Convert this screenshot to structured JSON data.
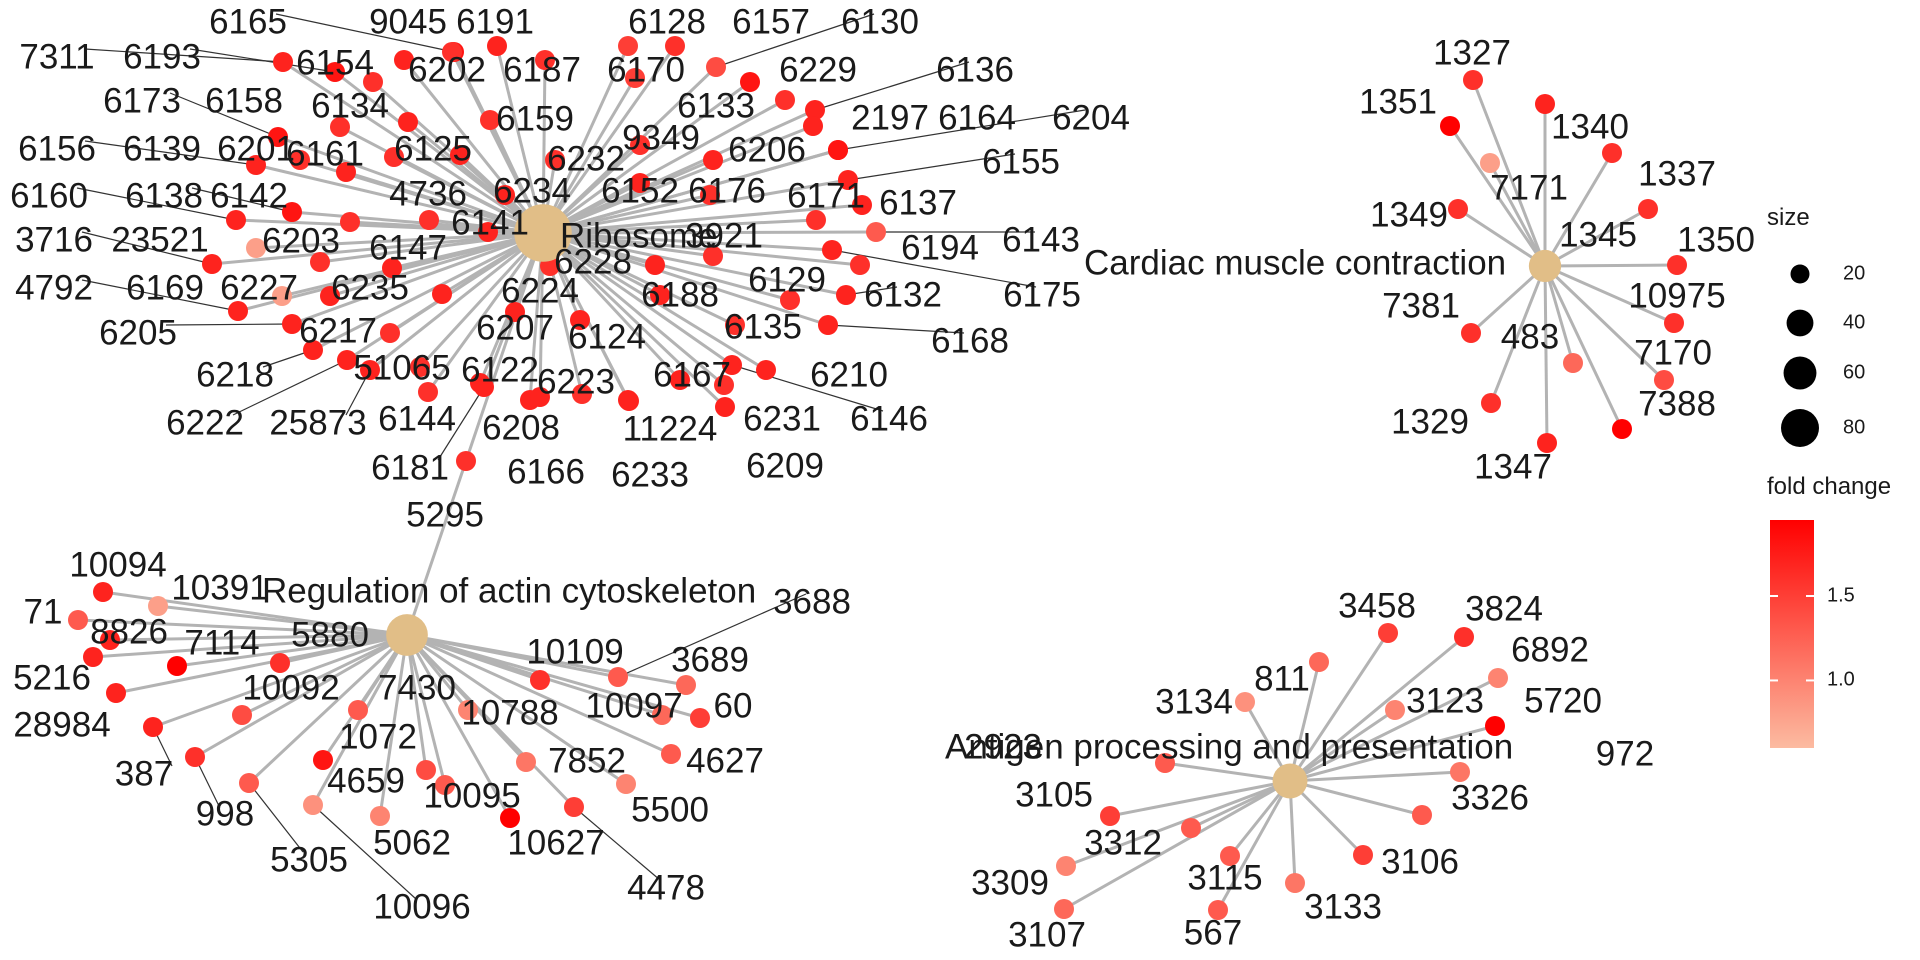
{
  "colors": {
    "category_node": "#E1BE87",
    "edge": "#b3b3b3",
    "leader": "#333333",
    "gradient_low": "#FCBBA1",
    "gradient_high": "#FF0000"
  },
  "legend": {
    "size_title": "size",
    "size_values": [
      "20",
      "40",
      "60",
      "80"
    ],
    "color_title": "fold change",
    "color_ticks": [
      "1.5",
      "1.0"
    ],
    "color_scale": [
      0.6,
      1.95
    ]
  },
  "categories": [
    {
      "name": "Ribosome",
      "size": 95
    },
    {
      "name": "Cardiac muscle contraction",
      "size": 30
    },
    {
      "name": "Regulation of actin cytoskeleton",
      "size": 50
    },
    {
      "name": "Antigen processing and presentation",
      "size": 35
    }
  ],
  "genes": [
    {
      "id": "6165",
      "fc": 1.8
    },
    {
      "id": "9045",
      "fc": 1.6
    },
    {
      "id": "6191",
      "fc": 1.7
    },
    {
      "id": "6128",
      "fc": 1.5
    },
    {
      "id": "6157",
      "fc": 1.6
    },
    {
      "id": "6130",
      "fc": 1.4
    },
    {
      "id": "7311",
      "fc": 1.7
    },
    {
      "id": "6193",
      "fc": 1.8
    },
    {
      "id": "6154",
      "fc": 1.6
    },
    {
      "id": "6202",
      "fc": 1.7
    },
    {
      "id": "6187",
      "fc": 1.6
    },
    {
      "id": "6170",
      "fc": 1.5
    },
    {
      "id": "6229",
      "fc": 1.6
    },
    {
      "id": "6136",
      "fc": 1.7
    },
    {
      "id": "6173",
      "fc": 1.8
    },
    {
      "id": "6158",
      "fc": 1.6
    },
    {
      "id": "6134",
      "fc": 1.7
    },
    {
      "id": "6133",
      "fc": 1.8
    },
    {
      "id": "6159",
      "fc": 1.6
    },
    {
      "id": "2197",
      "fc": 1.7
    },
    {
      "id": "6164",
      "fc": 1.7
    },
    {
      "id": "6204",
      "fc": 1.8
    },
    {
      "id": "6156",
      "fc": 1.7
    },
    {
      "id": "6139",
      "fc": 1.6
    },
    {
      "id": "6201",
      "fc": 1.7
    },
    {
      "id": "6161",
      "fc": 1.6
    },
    {
      "id": "6125",
      "fc": 1.7
    },
    {
      "id": "9349",
      "fc": 1.6
    },
    {
      "id": "6206",
      "fc": 1.7
    },
    {
      "id": "6155",
      "fc": 1.7
    },
    {
      "id": "6232",
      "fc": 1.6
    },
    {
      "id": "6160",
      "fc": 1.7
    },
    {
      "id": "6138",
      "fc": 1.8
    },
    {
      "id": "6142",
      "fc": 1.6
    },
    {
      "id": "4736",
      "fc": 1.6
    },
    {
      "id": "6234",
      "fc": 1.7
    },
    {
      "id": "6152",
      "fc": 1.7
    },
    {
      "id": "6176",
      "fc": 1.6
    },
    {
      "id": "6171",
      "fc": 1.6
    },
    {
      "id": "6137",
      "fc": 1.7
    },
    {
      "id": "6141",
      "fc": 1.7
    },
    {
      "id": "3716",
      "fc": 1.7
    },
    {
      "id": "23521",
      "fc": 0.8
    },
    {
      "id": "6203",
      "fc": 1.6
    },
    {
      "id": "6147",
      "fc": 1.7
    },
    {
      "id": "3921",
      "fc": 1.6
    },
    {
      "id": "6194",
      "fc": 1.6
    },
    {
      "id": "6143",
      "fc": 1.3
    },
    {
      "id": "6228",
      "fc": 1.7
    },
    {
      "id": "4792",
      "fc": 1.7
    },
    {
      "id": "6169",
      "fc": 0.8
    },
    {
      "id": "6227",
      "fc": 1.7
    },
    {
      "id": "6235",
      "fc": 1.7
    },
    {
      "id": "6224",
      "fc": 1.6
    },
    {
      "id": "6188",
      "fc": 1.7
    },
    {
      "id": "6129",
      "fc": 1.6
    },
    {
      "id": "6132",
      "fc": 1.7
    },
    {
      "id": "6175",
      "fc": 1.7
    },
    {
      "id": "6205",
      "fc": 1.7
    },
    {
      "id": "6217",
      "fc": 1.6
    },
    {
      "id": "6207",
      "fc": 1.7
    },
    {
      "id": "6124",
      "fc": 1.7
    },
    {
      "id": "6135",
      "fc": 1.6
    },
    {
      "id": "6168",
      "fc": 1.7
    },
    {
      "id": "6218",
      "fc": 1.7
    },
    {
      "id": "51065",
      "fc": 1.6
    },
    {
      "id": "6122",
      "fc": 1.7
    },
    {
      "id": "6223",
      "fc": 1.6
    },
    {
      "id": "6167",
      "fc": 1.7
    },
    {
      "id": "6210",
      "fc": 1.7
    },
    {
      "id": "6222",
      "fc": 1.7
    },
    {
      "id": "25873",
      "fc": 1.7
    },
    {
      "id": "6144",
      "fc": 1.6
    },
    {
      "id": "6208",
      "fc": 1.7
    },
    {
      "id": "11224",
      "fc": 1.7
    },
    {
      "id": "6231",
      "fc": 1.6
    },
    {
      "id": "6146",
      "fc": 1.7
    },
    {
      "id": "6181",
      "fc": 1.7
    },
    {
      "id": "6166",
      "fc": 1.7
    },
    {
      "id": "6233",
      "fc": 1.7
    },
    {
      "id": "6209",
      "fc": 1.7
    },
    {
      "id": "5295",
      "fc": 1.6
    },
    {
      "id": "1327",
      "fc": 1.6
    },
    {
      "id": "1351",
      "fc": 1.95
    },
    {
      "id": "1340",
      "fc": 1.7
    },
    {
      "id": "1337",
      "fc": 1.6
    },
    {
      "id": "7171",
      "fc": 0.8
    },
    {
      "id": "1349",
      "fc": 1.6
    },
    {
      "id": "1345",
      "fc": 1.6
    },
    {
      "id": "1350",
      "fc": 1.6
    },
    {
      "id": "10975",
      "fc": 1.6
    },
    {
      "id": "7381",
      "fc": 1.6
    },
    {
      "id": "483",
      "fc": 1.2
    },
    {
      "id": "7170",
      "fc": 1.4
    },
    {
      "id": "7388",
      "fc": 1.95
    },
    {
      "id": "1329",
      "fc": 1.6
    },
    {
      "id": "1347",
      "fc": 1.7
    },
    {
      "id": "10094",
      "fc": 1.7
    },
    {
      "id": "10391",
      "fc": 0.8
    },
    {
      "id": "71",
      "fc": 1.3
    },
    {
      "id": "8826",
      "fc": 1.7
    },
    {
      "id": "7114",
      "fc": 1.95
    },
    {
      "id": "5880",
      "fc": 1.6
    },
    {
      "id": "3688",
      "fc": 1.3
    },
    {
      "id": "5216",
      "fc": 1.7
    },
    {
      "id": "10109",
      "fc": 1.6
    },
    {
      "id": "3689",
      "fc": 1.2
    },
    {
      "id": "10092",
      "fc": 1.4
    },
    {
      "id": "7430",
      "fc": 1.3
    },
    {
      "id": "10097",
      "fc": 1.2
    },
    {
      "id": "60",
      "fc": 1.5
    },
    {
      "id": "28984",
      "fc": 1.7
    },
    {
      "id": "1072",
      "fc": 1.8
    },
    {
      "id": "10788",
      "fc": 1.0
    },
    {
      "id": "387",
      "fc": 1.7
    },
    {
      "id": "7852",
      "fc": 1.1
    },
    {
      "id": "4627",
      "fc": 1.3
    },
    {
      "id": "998",
      "fc": 1.6
    },
    {
      "id": "4659",
      "fc": 1.4
    },
    {
      "id": "10095",
      "fc": 1.3
    },
    {
      "id": "5500",
      "fc": 1.0
    },
    {
      "id": "5305",
      "fc": 1.3
    },
    {
      "id": "5062",
      "fc": 1.0
    },
    {
      "id": "10627",
      "fc": 1.95
    },
    {
      "id": "4478",
      "fc": 1.5
    },
    {
      "id": "10096",
      "fc": 0.9
    },
    {
      "id": "3458",
      "fc": 1.5
    },
    {
      "id": "3824",
      "fc": 1.6
    },
    {
      "id": "6892",
      "fc": 1.0
    },
    {
      "id": "811",
      "fc": 1.2
    },
    {
      "id": "3134",
      "fc": 0.9
    },
    {
      "id": "3123",
      "fc": 1.0
    },
    {
      "id": "5720",
      "fc": 1.95
    },
    {
      "id": "2923",
      "fc": 1.3
    },
    {
      "id": "972",
      "fc": 1.1
    },
    {
      "id": "3105",
      "fc": 1.5
    },
    {
      "id": "3326",
      "fc": 1.3
    },
    {
      "id": "3312",
      "fc": 1.3
    },
    {
      "id": "3309",
      "fc": 1.0
    },
    {
      "id": "3106",
      "fc": 1.5
    },
    {
      "id": "3115",
      "fc": 1.3
    },
    {
      "id": "3133",
      "fc": 1.1
    },
    {
      "id": "3107",
      "fc": 1.2
    },
    {
      "id": "567",
      "fc": 1.3
    }
  ]
}
